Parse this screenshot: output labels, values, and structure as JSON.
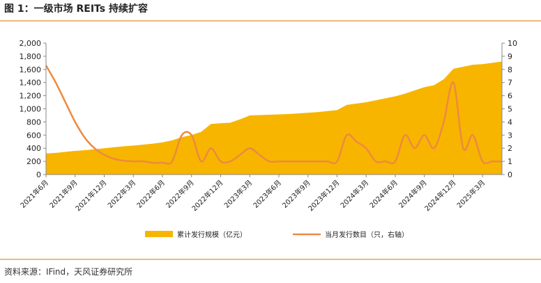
{
  "chart_data": {
    "type": "area-line",
    "title": "图 1：一级市场 REITs 持续扩容",
    "categories": [
      "2021年6月",
      null,
      null,
      "2021年9月",
      null,
      null,
      "2021年12月",
      null,
      null,
      "2022年3月",
      null,
      null,
      "2022年6月",
      null,
      null,
      "2022年9月",
      null,
      null,
      "2022年12月",
      null,
      null,
      "2023年3月",
      null,
      null,
      "2023年6月",
      null,
      null,
      "2023年9月",
      null,
      null,
      "2023年12月",
      null,
      null,
      "2024年3月",
      null,
      null,
      "2024年6月",
      null,
      null,
      "2024年9月",
      null,
      null,
      "2024年12月",
      null,
      null,
      "2025年3月",
      null,
      null
    ],
    "series": [
      {
        "name": "累计发行规模（亿元）",
        "type": "area",
        "color": "#f7b500",
        "values": [
          320,
          330,
          345,
          360,
          370,
          385,
          400,
          415,
          430,
          440,
          455,
          470,
          490,
          520,
          570,
          600,
          650,
          770,
          780,
          790,
          840,
          900,
          905,
          910,
          915,
          920,
          930,
          940,
          950,
          965,
          980,
          1060,
          1080,
          1100,
          1130,
          1160,
          1190,
          1230,
          1280,
          1330,
          1360,
          1450,
          1610,
          1640,
          1670,
          1680,
          1700,
          1720
        ]
      },
      {
        "name": "当月发行数目（只，右轴）",
        "type": "line",
        "axis": "y2",
        "color": "#ed8a3f",
        "values": [
          8.3,
          7,
          5.5,
          4,
          2.8,
          2,
          1.5,
          1.2,
          1.05,
          1,
          1,
          0.9,
          0.9,
          1,
          3,
          3,
          1,
          2,
          1,
          1,
          1.5,
          2,
          1.5,
          1,
          1,
          1,
          1,
          1,
          1,
          1,
          1,
          3,
          2.5,
          2,
          1,
          1,
          1,
          3,
          2,
          3,
          2,
          4,
          7,
          2,
          3,
          1,
          1,
          1
        ]
      }
    ],
    "ylim": [
      0,
      2000
    ],
    "yticks": [
      0,
      200,
      400,
      600,
      800,
      {
        "value": 1000,
        "label": "1,000"
      },
      {
        "value": 1200,
        "label": "1,200"
      },
      {
        "value": 1400,
        "label": "1,400"
      },
      {
        "value": 1600,
        "label": "1,600"
      },
      {
        "value": 1800,
        "label": "1,800"
      },
      {
        "value": 2000,
        "label": "2,000"
      }
    ],
    "y2lim": [
      0,
      10
    ],
    "y2ticks": [
      0,
      1,
      2,
      3,
      4,
      5,
      6,
      7,
      8,
      9,
      10
    ],
    "legend": "bottom"
  },
  "source": "资料来源：IFind，天风证券研究所"
}
